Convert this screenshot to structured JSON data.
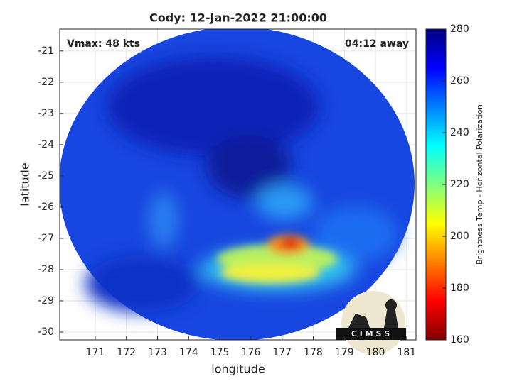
{
  "chart_data": {
    "type": "image",
    "title": "Cody: 12-Jan-2022 21:00:00",
    "annotations": [
      "Vmax: 48 kts",
      "04:12 away"
    ],
    "x_label": "longitude",
    "y_label": "latitude",
    "xlim": [
      169.86,
      181.3
    ],
    "ylim": [
      -30.25,
      -20.3
    ],
    "xticks": [
      171,
      172,
      173,
      174,
      175,
      176,
      177,
      178,
      179,
      180,
      181
    ],
    "yticks": [
      -30,
      -29,
      -28,
      -27,
      -26,
      -25,
      -24,
      -23,
      -22,
      -21
    ],
    "grid": true,
    "colorbar": {
      "label": "Brightness Temp - Horizontal Polarization",
      "lim": [
        160,
        280
      ],
      "ticks": [
        160,
        180,
        200,
        220,
        240,
        260,
        280
      ]
    },
    "logo": "C I M S S"
  }
}
